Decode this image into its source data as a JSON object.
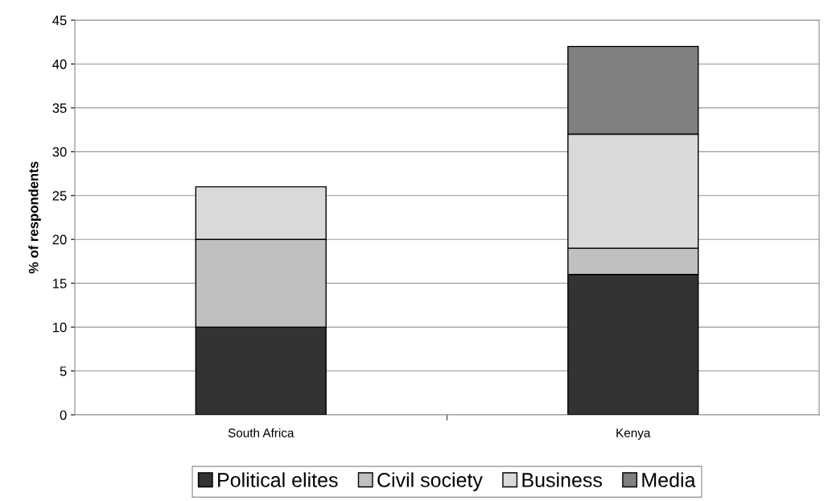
{
  "chart_data": {
    "type": "bar",
    "stacked": true,
    "ylabel": "% of respondents",
    "categories": [
      "South Africa",
      "Kenya"
    ],
    "series": [
      {
        "name": "Political elites",
        "color": "#333333",
        "values": [
          10,
          16
        ]
      },
      {
        "name": "Civil society",
        "color": "#c0c0c0",
        "values": [
          10,
          3
        ]
      },
      {
        "name": "Business",
        "color": "#d9d9d9",
        "values": [
          6,
          13
        ]
      },
      {
        "name": "Media",
        "color": "#808080",
        "values": [
          null,
          10
        ]
      }
    ],
    "ylim": [
      0,
      45
    ],
    "yticks": [
      0,
      5,
      10,
      15,
      20,
      25,
      30,
      35,
      40,
      45
    ],
    "grid": "y",
    "legend": "bottom"
  }
}
